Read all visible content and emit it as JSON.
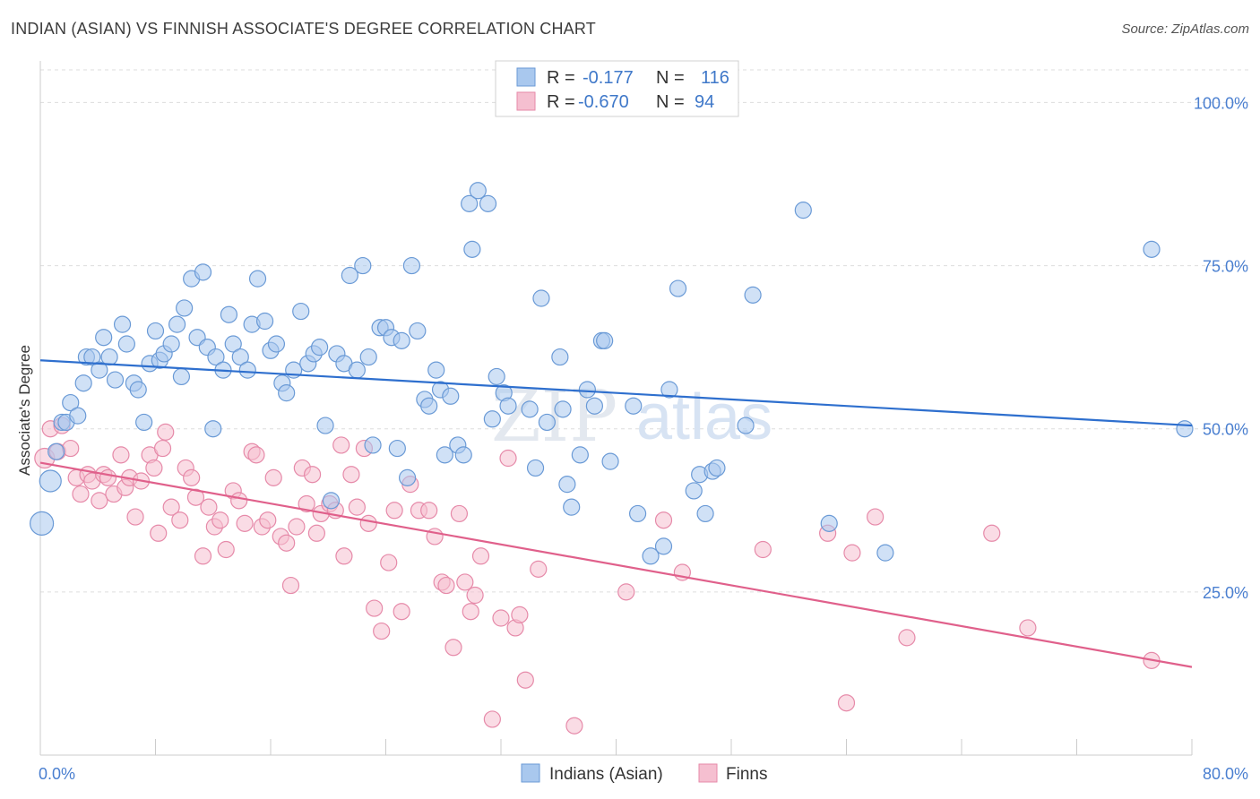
{
  "title": "INDIAN (ASIAN) VS FINNISH ASSOCIATE'S DEGREE CORRELATION CHART",
  "source": "Source: ZipAtlas.com",
  "watermark": {
    "left": "ZIP",
    "right": "atlas"
  },
  "colors": {
    "blue_fill": "#a9c8ee",
    "blue_stroke": "#6a9ad6",
    "blue_line": "#2e6fce",
    "pink_fill": "#f5bfd0",
    "pink_stroke": "#e68aa9",
    "pink_line": "#e0608b",
    "grid": "#dddddd",
    "tick_text": "#4a7fd0"
  },
  "legend": {
    "rows": [
      {
        "r_label": "R =",
        "r_value": "-0.177",
        "n_label": "N =",
        "n_value": "116"
      },
      {
        "r_label": "R =",
        "r_value": "-0.670",
        "n_label": "N =",
        "n_value": "94"
      }
    ]
  },
  "bottom_legend": [
    "Indians (Asian)",
    "Finns"
  ],
  "chart_data": {
    "type": "scatter",
    "title": "INDIAN (ASIAN) VS FINNISH ASSOCIATE'S DEGREE CORRELATION CHART",
    "xlabel": "",
    "ylabel": "Associate's Degree",
    "xlim": [
      0,
      80
    ],
    "ylim": [
      0,
      105
    ],
    "x_tick_labels": [
      "0.0%",
      "80.0%"
    ],
    "y_ticks": [
      25,
      50,
      75,
      100
    ],
    "y_tick_labels": [
      "25.0%",
      "50.0%",
      "75.0%",
      "100.0%"
    ],
    "grid": true,
    "legend_position": "top-center",
    "series": [
      {
        "name": "Indians (Asian)",
        "r": -0.177,
        "n": 116,
        "trend": [
          [
            0,
            60.5
          ],
          [
            80,
            50.5
          ]
        ],
        "points": [
          [
            0.1,
            35.5
          ],
          [
            0.7,
            42
          ],
          [
            1.1,
            46.5
          ],
          [
            1.5,
            51
          ],
          [
            1.8,
            51
          ],
          [
            2.1,
            54
          ],
          [
            2.6,
            52
          ],
          [
            3,
            57
          ],
          [
            3.2,
            61
          ],
          [
            3.6,
            61
          ],
          [
            4.1,
            59
          ],
          [
            4.4,
            64
          ],
          [
            4.8,
            61
          ],
          [
            5.2,
            57.5
          ],
          [
            5.7,
            66
          ],
          [
            6,
            63
          ],
          [
            6.5,
            57
          ],
          [
            6.8,
            56
          ],
          [
            7.2,
            51
          ],
          [
            7.6,
            60
          ],
          [
            8,
            65
          ],
          [
            8.3,
            60.5
          ],
          [
            8.6,
            61.5
          ],
          [
            9.1,
            63
          ],
          [
            9.5,
            66
          ],
          [
            9.8,
            58
          ],
          [
            10,
            68.5
          ],
          [
            10.5,
            73
          ],
          [
            10.9,
            64
          ],
          [
            11.3,
            74
          ],
          [
            11.6,
            62.5
          ],
          [
            12,
            50
          ],
          [
            12.2,
            61
          ],
          [
            12.7,
            59
          ],
          [
            13.1,
            67.5
          ],
          [
            13.4,
            63
          ],
          [
            13.9,
            61
          ],
          [
            14.4,
            59
          ],
          [
            14.7,
            66
          ],
          [
            15.1,
            73
          ],
          [
            15.6,
            66.5
          ],
          [
            16,
            62
          ],
          [
            16.4,
            63
          ],
          [
            16.8,
            57
          ],
          [
            17.1,
            55.5
          ],
          [
            17.6,
            59
          ],
          [
            18.1,
            68
          ],
          [
            18.6,
            60
          ],
          [
            19,
            61.5
          ],
          [
            19.4,
            62.5
          ],
          [
            19.8,
            50.5
          ],
          [
            20.2,
            39
          ],
          [
            20.6,
            61.5
          ],
          [
            21.1,
            60
          ],
          [
            21.5,
            73.5
          ],
          [
            22,
            59
          ],
          [
            22.4,
            75
          ],
          [
            22.8,
            61
          ],
          [
            23.1,
            47.5
          ],
          [
            23.6,
            65.5
          ],
          [
            24,
            65.5
          ],
          [
            24.4,
            64
          ],
          [
            24.8,
            47
          ],
          [
            25.1,
            63.5
          ],
          [
            25.5,
            42.5
          ],
          [
            25.8,
            75
          ],
          [
            26.2,
            65
          ],
          [
            26.7,
            54.5
          ],
          [
            27,
            53.5
          ],
          [
            27.5,
            59
          ],
          [
            27.8,
            56
          ],
          [
            28.1,
            46
          ],
          [
            28.5,
            55
          ],
          [
            29,
            47.5
          ],
          [
            29.4,
            46
          ],
          [
            29.8,
            84.5
          ],
          [
            30,
            77.5
          ],
          [
            30.4,
            86.5
          ],
          [
            31.1,
            84.5
          ],
          [
            31.4,
            51.5
          ],
          [
            31.7,
            58
          ],
          [
            32.2,
            55.5
          ],
          [
            32.5,
            53.5
          ],
          [
            34,
            53
          ],
          [
            34.4,
            44
          ],
          [
            34.8,
            70
          ],
          [
            35.2,
            51
          ],
          [
            36.1,
            61
          ],
          [
            36.3,
            53
          ],
          [
            36.6,
            41.5
          ],
          [
            36.9,
            38
          ],
          [
            37.5,
            46
          ],
          [
            38,
            56
          ],
          [
            38.5,
            53.5
          ],
          [
            39,
            63.5
          ],
          [
            39.2,
            63.5
          ],
          [
            39.6,
            45
          ],
          [
            41.2,
            53.5
          ],
          [
            41.5,
            37
          ],
          [
            42.4,
            30.5
          ],
          [
            43.3,
            32
          ],
          [
            43.7,
            56
          ],
          [
            44.3,
            71.5
          ],
          [
            45.4,
            40.5
          ],
          [
            45.8,
            43
          ],
          [
            46.2,
            37
          ],
          [
            46.7,
            43.5
          ],
          [
            47,
            44
          ],
          [
            49,
            50.5
          ],
          [
            49.5,
            70.5
          ],
          [
            53,
            83.5
          ],
          [
            54.8,
            35.5
          ],
          [
            58.7,
            31
          ],
          [
            77.2,
            77.5
          ],
          [
            79.5,
            50
          ]
        ]
      },
      {
        "name": "Finns",
        "r": -0.67,
        "n": 94,
        "trend": [
          [
            0,
            44.8
          ],
          [
            80,
            13.5
          ]
        ],
        "points": [
          [
            0.3,
            45.5
          ],
          [
            0.7,
            50
          ],
          [
            1.2,
            46.5
          ],
          [
            1.5,
            50.5
          ],
          [
            2.1,
            47
          ],
          [
            2.5,
            42.5
          ],
          [
            2.8,
            40
          ],
          [
            3.3,
            43
          ],
          [
            3.6,
            42
          ],
          [
            4.1,
            39
          ],
          [
            4.4,
            43
          ],
          [
            4.7,
            42.5
          ],
          [
            5.1,
            40
          ],
          [
            5.6,
            46
          ],
          [
            5.9,
            41
          ],
          [
            6.2,
            42.5
          ],
          [
            6.6,
            36.5
          ],
          [
            7,
            42
          ],
          [
            7.6,
            46
          ],
          [
            7.9,
            44
          ],
          [
            8.2,
            34
          ],
          [
            8.5,
            47
          ],
          [
            8.7,
            49.5
          ],
          [
            9.1,
            38
          ],
          [
            9.7,
            36
          ],
          [
            10.1,
            44
          ],
          [
            10.5,
            42.5
          ],
          [
            10.8,
            39.5
          ],
          [
            11.3,
            30.5
          ],
          [
            11.7,
            38
          ],
          [
            12.1,
            35
          ],
          [
            12.5,
            36
          ],
          [
            12.9,
            31.5
          ],
          [
            13.4,
            40.5
          ],
          [
            13.8,
            39
          ],
          [
            14.2,
            35.5
          ],
          [
            14.7,
            46.5
          ],
          [
            15,
            46
          ],
          [
            15.4,
            35
          ],
          [
            15.8,
            36
          ],
          [
            16.2,
            42.5
          ],
          [
            16.7,
            33.5
          ],
          [
            17.1,
            32.5
          ],
          [
            17.4,
            26
          ],
          [
            17.8,
            35
          ],
          [
            18.2,
            44
          ],
          [
            18.5,
            38.5
          ],
          [
            18.9,
            43
          ],
          [
            19.2,
            34
          ],
          [
            19.5,
            37
          ],
          [
            20.1,
            38.5
          ],
          [
            20.5,
            37.5
          ],
          [
            20.9,
            47.5
          ],
          [
            21.1,
            30.5
          ],
          [
            21.6,
            43
          ],
          [
            22,
            38
          ],
          [
            22.5,
            47
          ],
          [
            22.8,
            35.5
          ],
          [
            23.2,
            22.5
          ],
          [
            23.7,
            19
          ],
          [
            24.2,
            29.5
          ],
          [
            24.6,
            37.5
          ],
          [
            25.1,
            22
          ],
          [
            25.7,
            41.5
          ],
          [
            26.3,
            37.5
          ],
          [
            27,
            37.5
          ],
          [
            27.4,
            33.5
          ],
          [
            27.9,
            26.5
          ],
          [
            28.2,
            26
          ],
          [
            28.7,
            16.5
          ],
          [
            29.1,
            37
          ],
          [
            29.5,
            26.5
          ],
          [
            29.9,
            22
          ],
          [
            30.2,
            24.5
          ],
          [
            30.6,
            30.5
          ],
          [
            31.4,
            5.5
          ],
          [
            32,
            21
          ],
          [
            32.5,
            45.5
          ],
          [
            33,
            19.5
          ],
          [
            33.3,
            21.5
          ],
          [
            33.7,
            11.5
          ],
          [
            34.6,
            28.5
          ],
          [
            37.1,
            4.5
          ],
          [
            40.7,
            25
          ],
          [
            43.3,
            36
          ],
          [
            44.6,
            28
          ],
          [
            50.2,
            31.5
          ],
          [
            54.7,
            34
          ],
          [
            56,
            8
          ],
          [
            56.4,
            31
          ],
          [
            58,
            36.5
          ],
          [
            60.2,
            18
          ],
          [
            66.1,
            34
          ],
          [
            68.6,
            19.5
          ],
          [
            77.2,
            14.5
          ]
        ]
      }
    ]
  }
}
